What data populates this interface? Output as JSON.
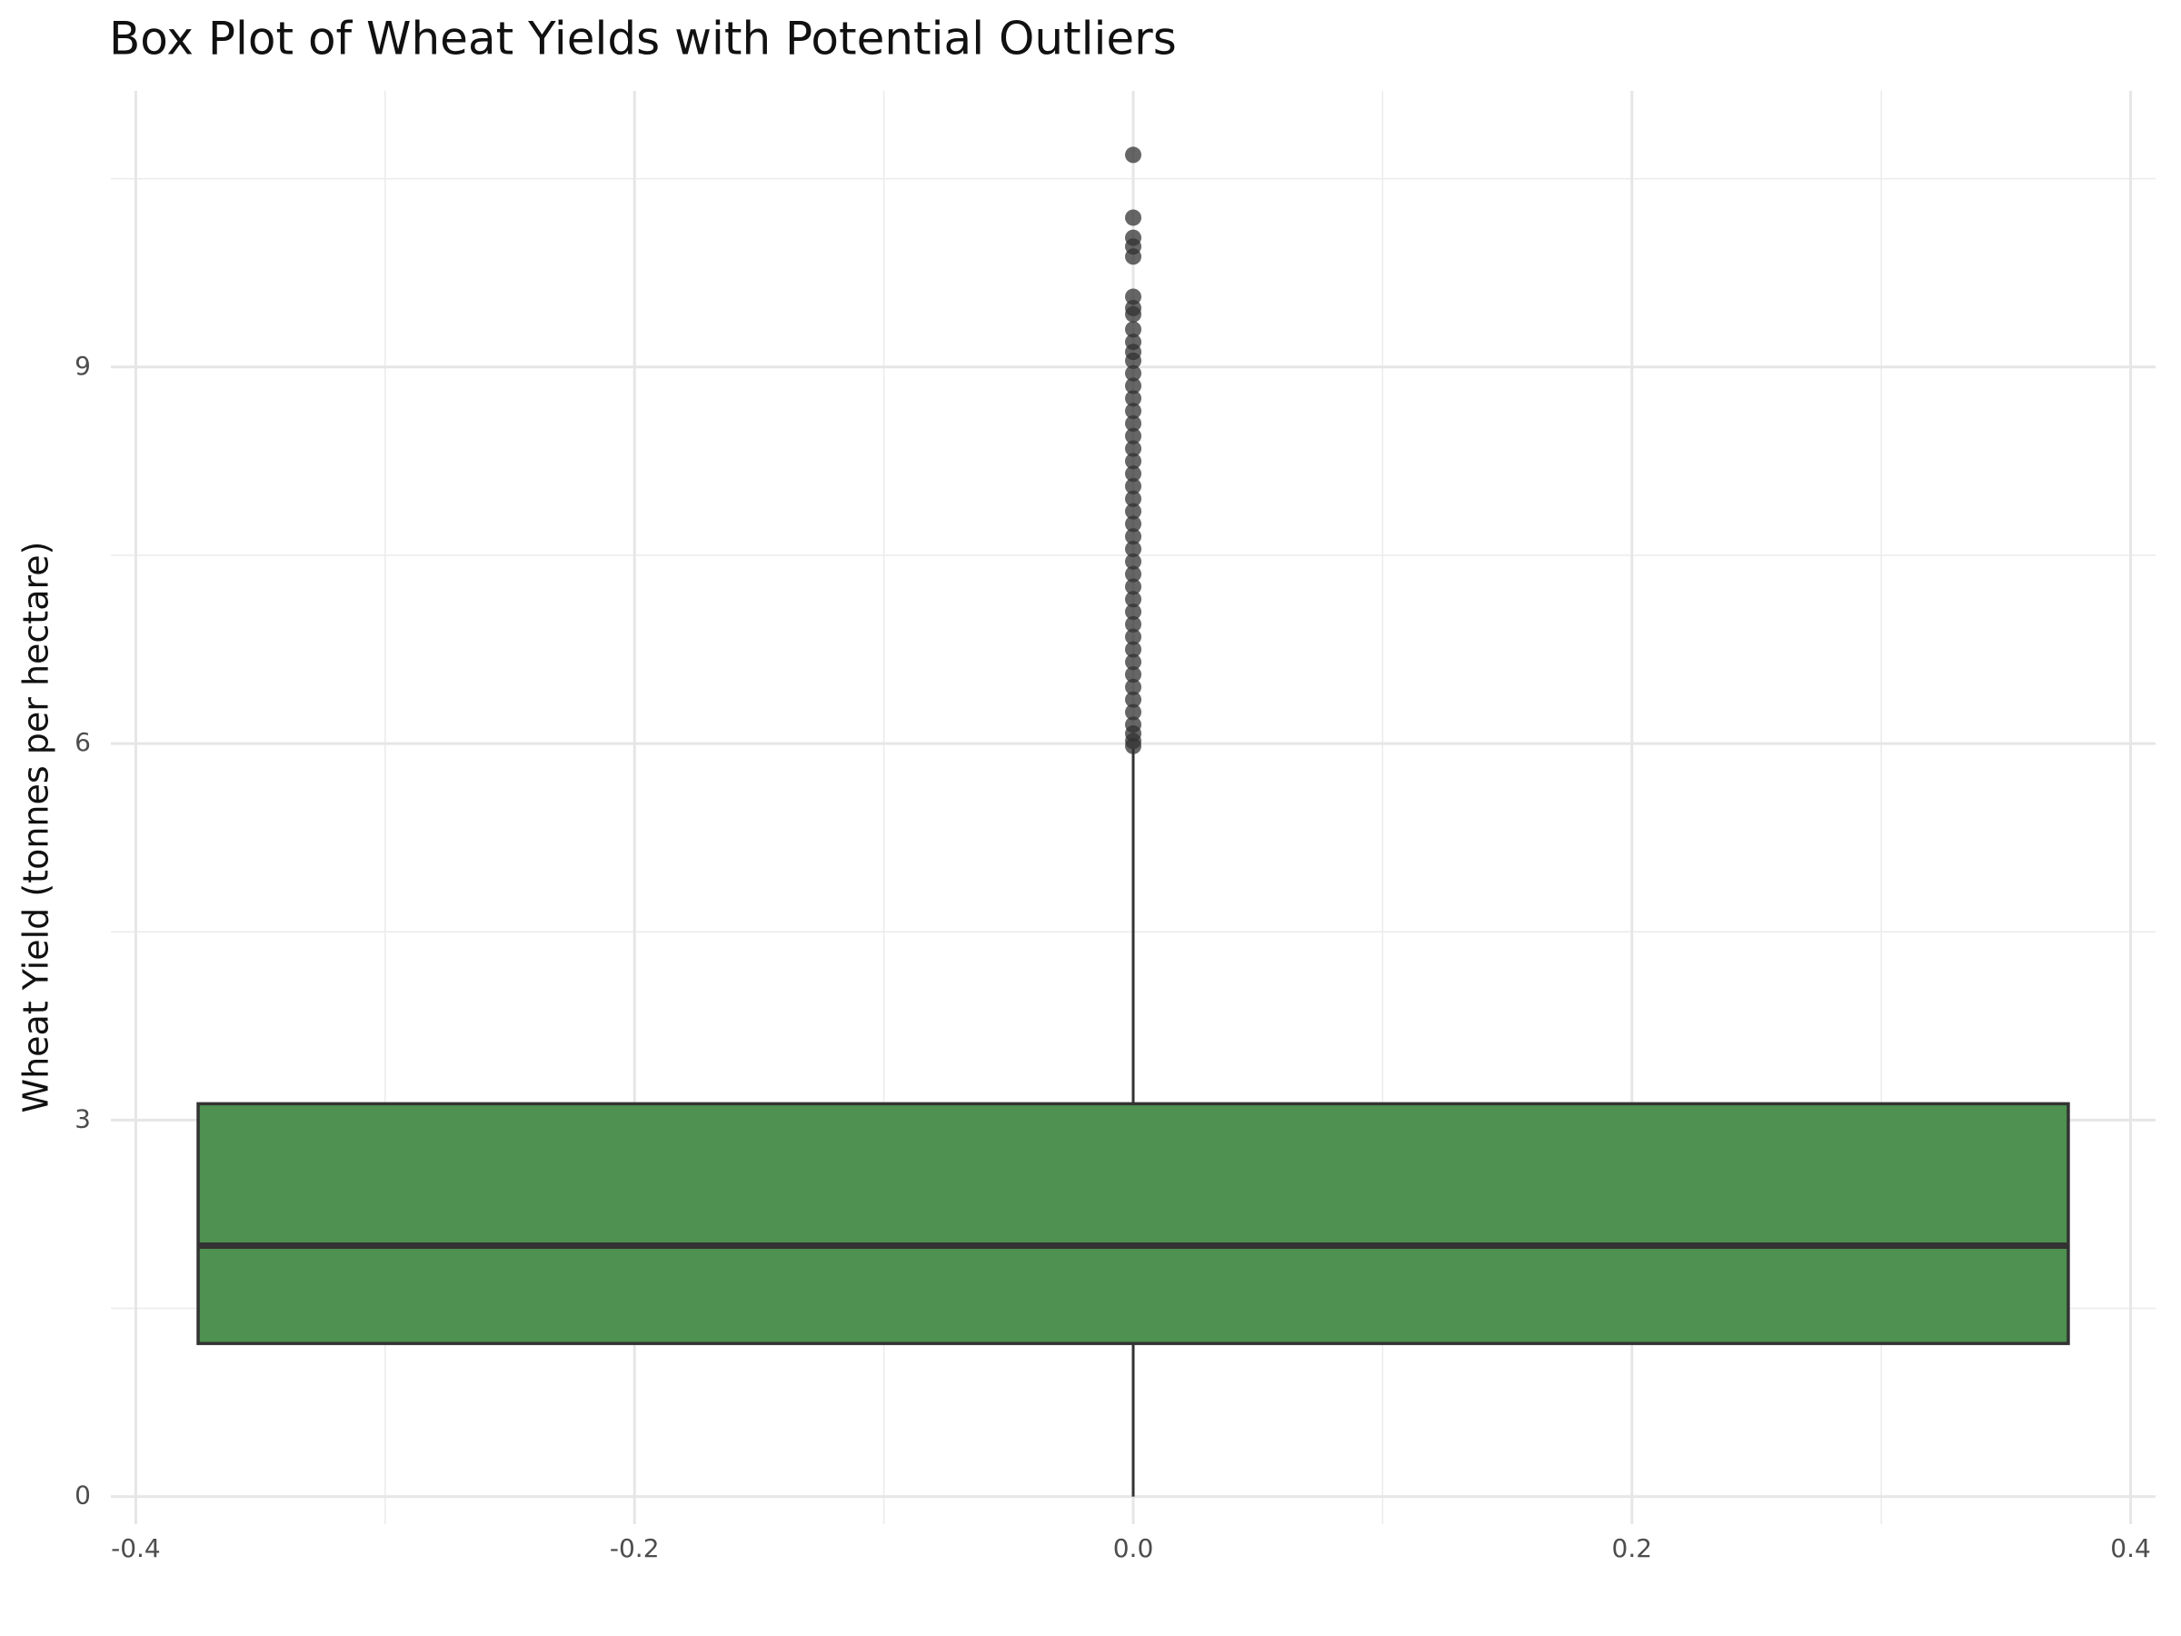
{
  "chart_data": {
    "type": "box",
    "title": "Box Plot of Wheat Yields with Potential Outliers",
    "y_label": "Wheat Yield (tonnes per hectare)",
    "xlim": [
      -0.41,
      0.41
    ],
    "xticks": [
      -0.4,
      -0.2,
      {
        "value": 0,
        "label": "0.0"
      },
      0.2,
      0.4
    ],
    "minor_xticks": [
      -0.3,
      -0.1,
      0.1,
      0.3
    ],
    "ylim": [
      -0.22,
      11.2
    ],
    "yticks": [
      0,
      3,
      6,
      9
    ],
    "minor_yticks": [
      1.5,
      4.5,
      7.5,
      10.5
    ],
    "grid": true,
    "box": {
      "x": 0,
      "width": 0.75,
      "min": 0,
      "q1": 1.22,
      "median": 2.0,
      "q3": 3.13,
      "max": 5.96,
      "color": "#4e9150",
      "outliers": [
        5.98,
        6.02,
        6.08,
        6.15,
        6.25,
        6.35,
        6.45,
        6.55,
        6.65,
        6.75,
        6.85,
        6.95,
        7.05,
        7.15,
        7.25,
        7.35,
        7.45,
        7.55,
        7.65,
        7.75,
        7.85,
        7.95,
        8.05,
        8.15,
        8.25,
        8.35,
        8.45,
        8.55,
        8.65,
        8.75,
        8.85,
        8.95,
        9.05,
        9.12,
        9.2,
        9.3,
        9.42,
        9.47,
        9.56,
        9.88,
        9.96,
        10.03,
        10.19,
        10.69
      ],
      "outlier_color": "#333333"
    }
  }
}
